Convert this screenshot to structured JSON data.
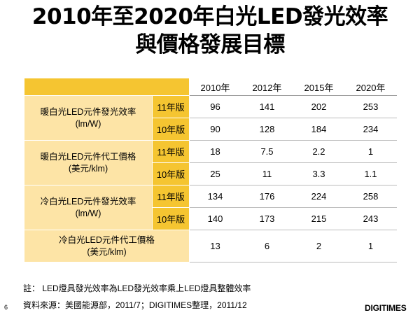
{
  "title": {
    "line1": "2010年至2020年白光LED發光效率",
    "line2": "與價格發展目標"
  },
  "table": {
    "years": [
      "2010年",
      "2012年",
      "2015年",
      "2020年"
    ],
    "groups": [
      {
        "label1": "暖白光LED元件發光效率",
        "label2": "(lm/W)",
        "rows": [
          {
            "version": "11年版",
            "values": [
              "96",
              "141",
              "202",
              "253"
            ]
          },
          {
            "version": "10年版",
            "values": [
              "90",
              "128",
              "184",
              "234"
            ]
          }
        ]
      },
      {
        "label1": "暖白光LED元件代工價格",
        "label2": "(美元/klm)",
        "rows": [
          {
            "version": "11年版",
            "values": [
              "18",
              "7.5",
              "2.2",
              "1"
            ]
          },
          {
            "version": "10年版",
            "values": [
              "25",
              "11",
              "3.3",
              "1.1"
            ]
          }
        ]
      },
      {
        "label1": "冷白光LED元件發光效率",
        "label2": "(lm/W)",
        "rows": [
          {
            "version": "11年版",
            "values": [
              "134",
              "176",
              "224",
              "258"
            ]
          },
          {
            "version": "10年版",
            "values": [
              "140",
              "173",
              "215",
              "243"
            ]
          }
        ]
      },
      {
        "label1": "冷白光LED元件代工價格",
        "label2": "(美元/klm)",
        "rows": [
          {
            "version": "",
            "values": [
              "13",
              "6",
              "2",
              "1"
            ]
          }
        ]
      }
    ]
  },
  "notes": {
    "note": "註：  LED燈具發光效率為LED發光效率乘上LED燈具整體效率",
    "source": "資料來源：美國能源部，2011/7；DIGITIMES整理，2011/12"
  },
  "page_number": "6",
  "logo": "DIGITIMES"
}
